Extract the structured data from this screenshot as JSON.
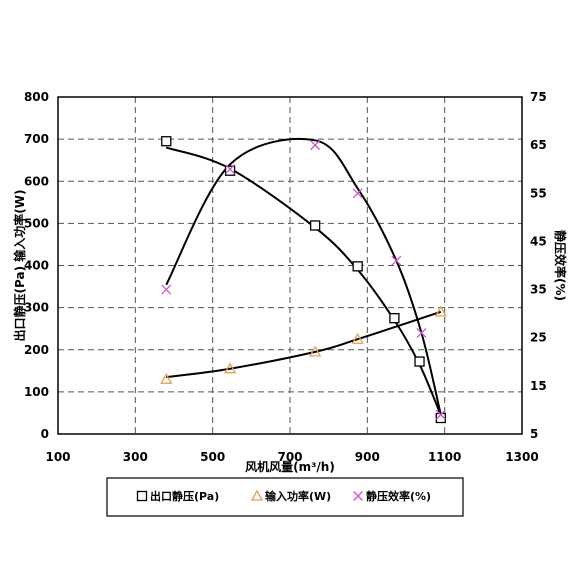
{
  "chart_data": {
    "type": "scatter",
    "xlabel": "风机风量(m³/h)",
    "ylabel_left": "出口静压(Pa) 输入功率(W)",
    "ylabel_right": "静压效率(%)",
    "xlim": [
      100,
      1300
    ],
    "ylim_left": [
      0,
      800
    ],
    "ylim_right": [
      5,
      75
    ],
    "x_ticks": [
      100,
      300,
      500,
      700,
      900,
      1100,
      1300
    ],
    "y_ticks_left": [
      0,
      100,
      200,
      300,
      400,
      500,
      600,
      700,
      800
    ],
    "y_ticks_right": [
      5,
      15,
      25,
      35,
      45,
      55,
      65,
      75
    ],
    "grid": true,
    "legend_position": "bottom",
    "series": [
      {
        "name": "出口静压(Pa)",
        "axis": "left",
        "marker": "square",
        "color": "#000000",
        "x": [
          380,
          545,
          765,
          875,
          970,
          1035,
          1090
        ],
        "y": [
          695,
          625,
          495,
          398,
          275,
          172,
          38
        ]
      },
      {
        "name": "输入功率(W)",
        "axis": "left",
        "marker": "triangle",
        "color": "#e0a050",
        "x": [
          380,
          545,
          765,
          875,
          1090
        ],
        "y": [
          130,
          155,
          195,
          225,
          290
        ]
      },
      {
        "name": "静压效率(%)",
        "axis": "right",
        "marker": "x",
        "color": "#cc55cc",
        "x": [
          380,
          545,
          765,
          875,
          975,
          1040,
          1090
        ],
        "y": [
          35,
          60,
          65,
          55,
          41,
          26,
          9
        ]
      }
    ],
    "fit_curves": {
      "color": "#000000",
      "static_pressure": {
        "axis": "left",
        "x": [
          380,
          545,
          765,
          875,
          970,
          1035,
          1090
        ],
        "y": [
          680,
          630,
          490,
          390,
          270,
          165,
          45
        ]
      },
      "input_power": {
        "axis": "left",
        "x": [
          380,
          545,
          765,
          875,
          1090
        ],
        "y": [
          135,
          155,
          195,
          225,
          290
        ]
      },
      "efficiency": {
        "axis": "right",
        "x": [
          380,
          545,
          765,
          875,
          975,
          1040,
          1090
        ],
        "y": [
          36,
          61,
          66,
          56,
          41,
          26,
          9
        ]
      }
    }
  }
}
